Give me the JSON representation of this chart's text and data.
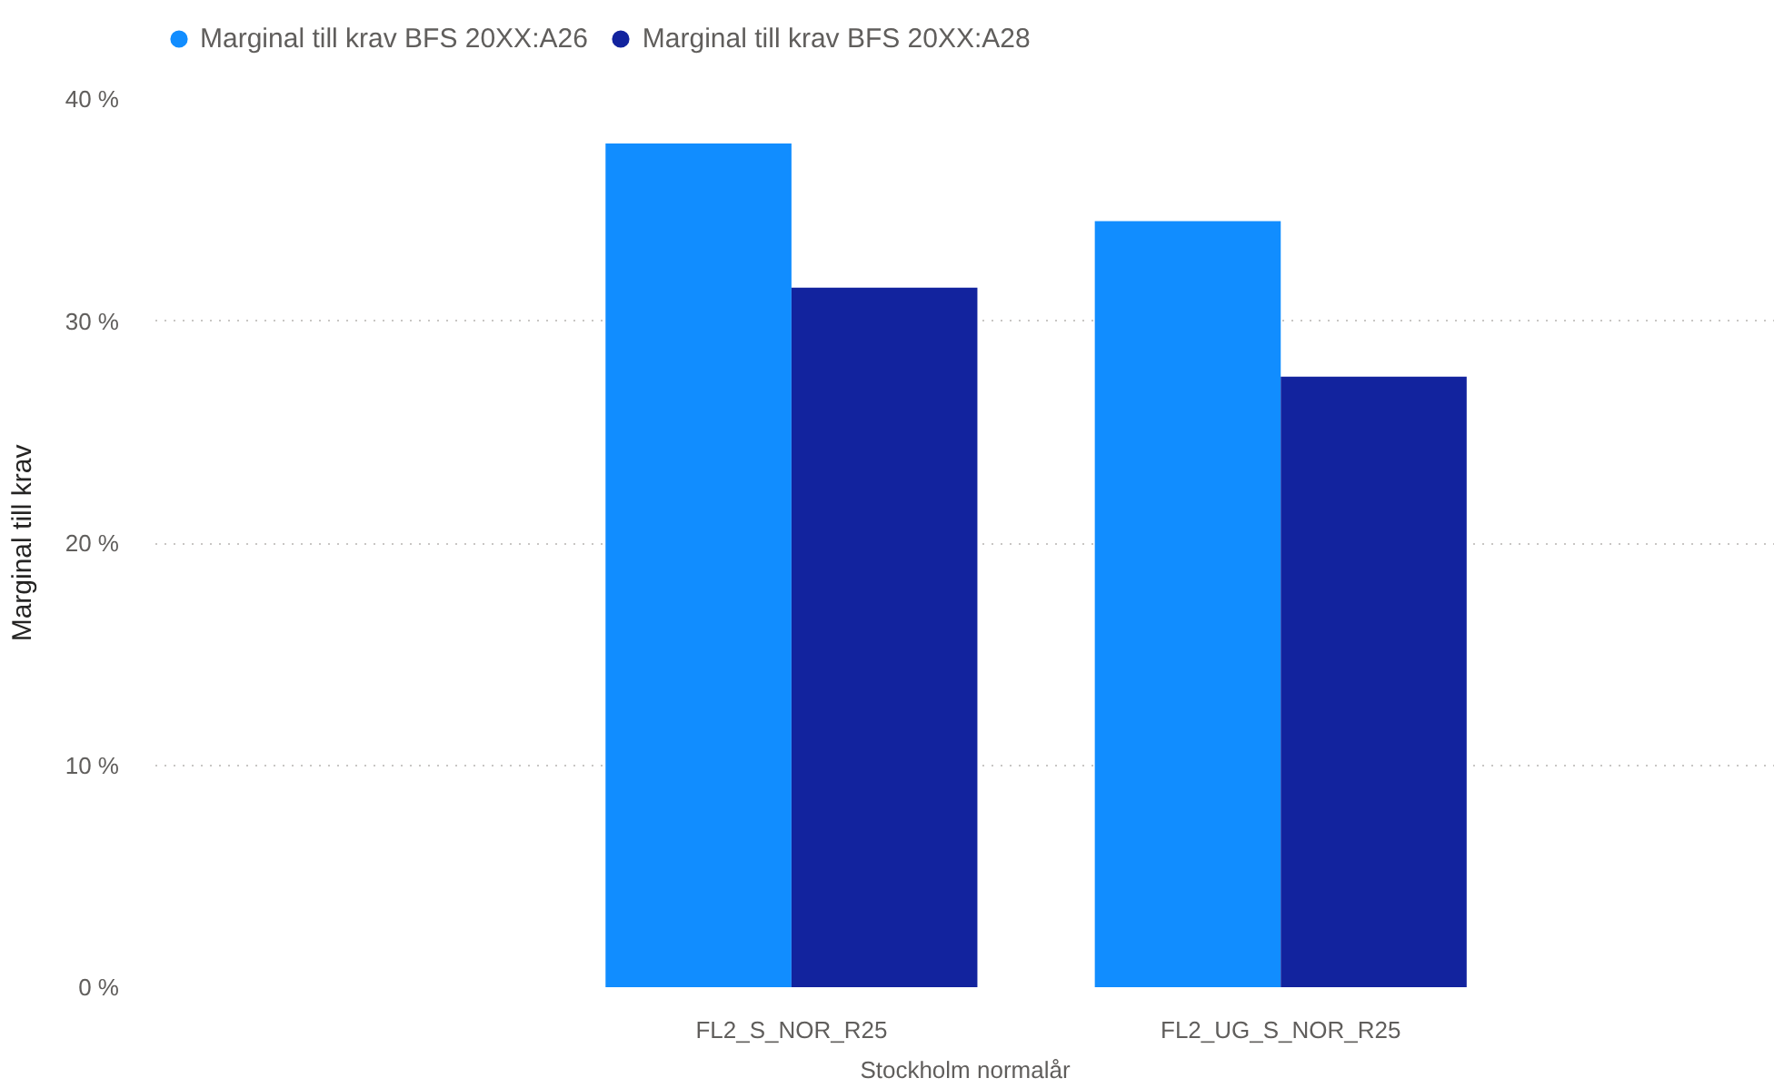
{
  "chart_data": {
    "type": "bar",
    "categories": [
      "FL2_S_NOR_R25",
      "FL2_UG_S_NOR_R25"
    ],
    "xlabel": "Stockholm normalår",
    "ylabel": "Marginal till krav",
    "series": [
      {
        "name": "Marginal till krav BFS 20XX:A26",
        "color": "#118dff",
        "values": [
          38,
          34.5
        ]
      },
      {
        "name": "Marginal till krav BFS 20XX:A28",
        "color": "#12239e",
        "values": [
          31.5,
          27.5
        ]
      }
    ],
    "ylim": [
      0,
      40
    ],
    "yticks": [
      {
        "value": 0,
        "label": "0 %"
      },
      {
        "value": 10,
        "label": "10 %"
      },
      {
        "value": 20,
        "label": "20 %"
      },
      {
        "value": 30,
        "label": "30 %"
      },
      {
        "value": 40,
        "label": "40 %"
      }
    ],
    "grid": "y",
    "legend": "top left"
  }
}
